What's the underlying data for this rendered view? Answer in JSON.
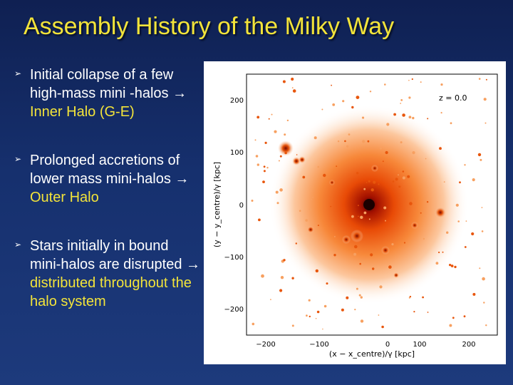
{
  "slide": {
    "title": "Assembly History of the Milky Way",
    "bullets": [
      {
        "text": "Initial collapse of a few high-mass mini -halos",
        "arrow": "→",
        "highlight": "Inner Halo (G-E)"
      },
      {
        "text": "Prolonged accretions of lower mass mini-halos",
        "arrow": "→",
        "highlight": "Outer Halo"
      },
      {
        "text": "Stars initially in bound mini-halos are disrupted",
        "arrow": "→",
        "highlight": "distributed throughout the halo system"
      }
    ],
    "colors": {
      "title": "#f3e43a",
      "body_text": "#ffffff",
      "highlight": "#f3e43a",
      "background": "#16306e"
    }
  },
  "figure": {
    "redshift_label": "z = 0.0",
    "xlabel": "(x − x_centre)/γ   [kpc]",
    "ylabel": "(y − y_centre)/γ   [kpc]",
    "xticks": [
      "−200",
      "−100",
      "0",
      "100",
      "200"
    ],
    "yticks": [
      "200",
      "100",
      "0",
      "−100",
      "−200"
    ]
  }
}
